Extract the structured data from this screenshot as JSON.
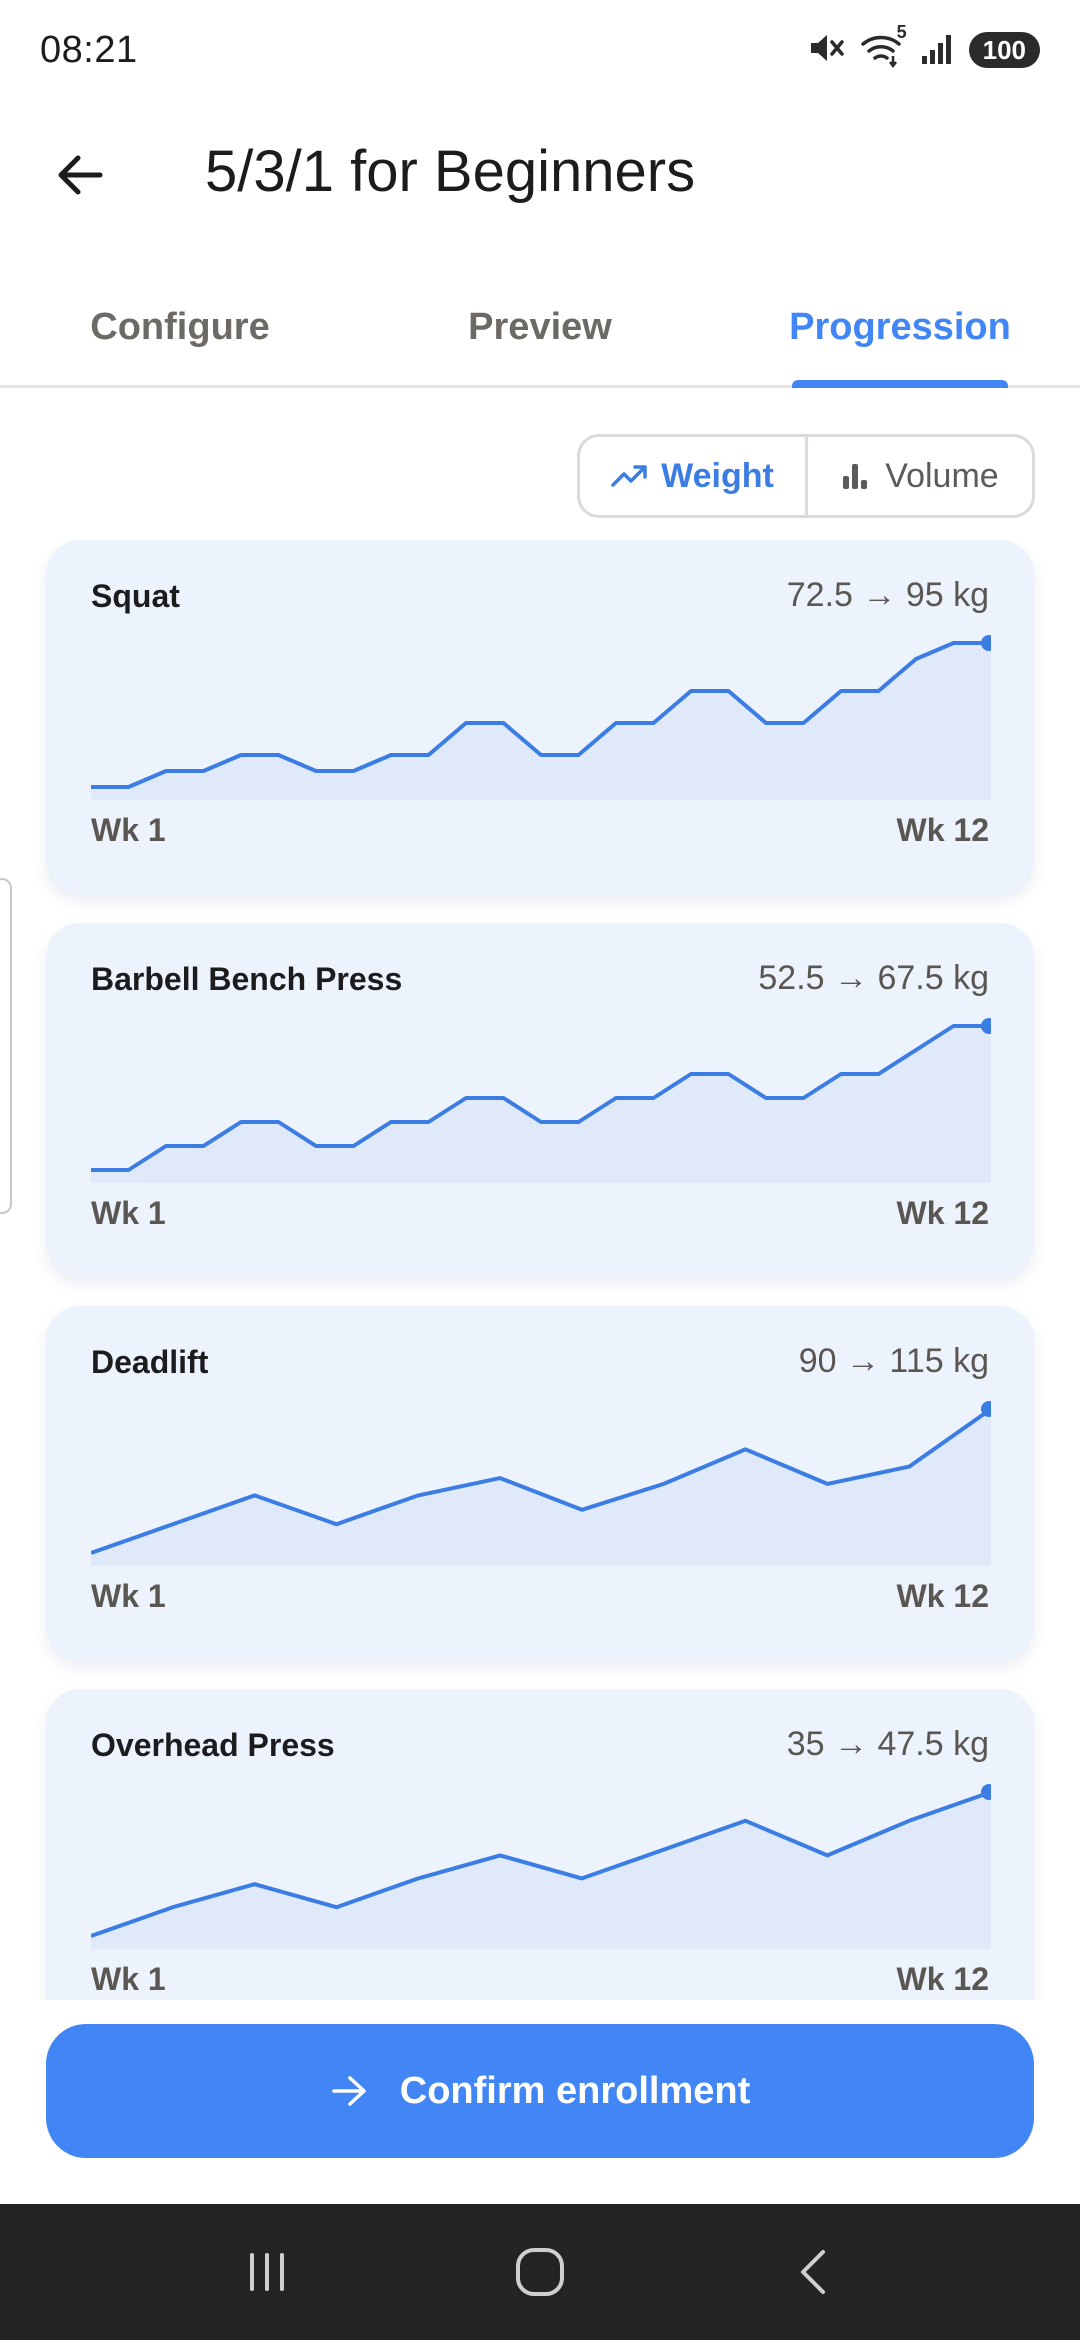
{
  "status_bar": {
    "time": "08:21",
    "battery": "100",
    "wifi_badge": "5"
  },
  "header": {
    "title": "5/3/1 for Beginners"
  },
  "tabs": [
    {
      "label": "Configure",
      "active": false
    },
    {
      "label": "Preview",
      "active": false
    },
    {
      "label": "Progression",
      "active": true
    }
  ],
  "toggle": {
    "weight_label": "Weight",
    "volume_label": "Volume",
    "selected": "Weight"
  },
  "colors": {
    "accent": "#4285f4",
    "line": "#3b7de3",
    "fill": "#dfe9fa",
    "card_bg": "#edf3fd"
  },
  "chart_data": [
    {
      "type": "area",
      "title": "Squat",
      "range_label": "72.5 → 95 kg",
      "x_start_label": "Wk 1",
      "x_end_label": "Wk 12",
      "y": [
        72.5,
        72.5,
        75,
        75,
        77.5,
        77.5,
        75,
        75,
        77.5,
        77.5,
        82.5,
        82.5,
        77.5,
        77.5,
        82.5,
        82.5,
        87.5,
        87.5,
        82.5,
        82.5,
        87.5,
        87.5,
        92.5,
        95,
        95
      ],
      "ylim": [
        72.5,
        95
      ]
    },
    {
      "type": "area",
      "title": "Barbell Bench Press",
      "range_label": "52.5 → 67.5 kg",
      "x_start_label": "Wk 1",
      "x_end_label": "Wk 12",
      "y": [
        52.5,
        52.5,
        55,
        55,
        57.5,
        57.5,
        55,
        55,
        57.5,
        57.5,
        60,
        60,
        57.5,
        57.5,
        60,
        60,
        62.5,
        62.5,
        60,
        60,
        62.5,
        62.5,
        65,
        67.5,
        67.5
      ],
      "ylim": [
        52.5,
        67.5
      ]
    },
    {
      "type": "area",
      "title": "Deadlift",
      "range_label": "90 → 115 kg",
      "x_start_label": "Wk 1",
      "x_end_label": "Wk 12",
      "y": [
        90,
        95,
        100,
        95,
        100,
        103,
        97.5,
        102,
        108,
        102,
        105,
        115
      ],
      "ylim": [
        90,
        115
      ]
    },
    {
      "type": "area",
      "title": "Overhead Press",
      "range_label": "35 → 47.5 kg",
      "x_start_label": "Wk 1",
      "x_end_label": "Wk 12",
      "y": [
        35,
        37.5,
        39.5,
        37.5,
        40,
        42,
        40,
        42.5,
        45,
        42,
        45,
        47.5
      ],
      "ylim": [
        35,
        47.5
      ]
    }
  ],
  "actions": {
    "confirm_label": "Confirm enrollment"
  }
}
